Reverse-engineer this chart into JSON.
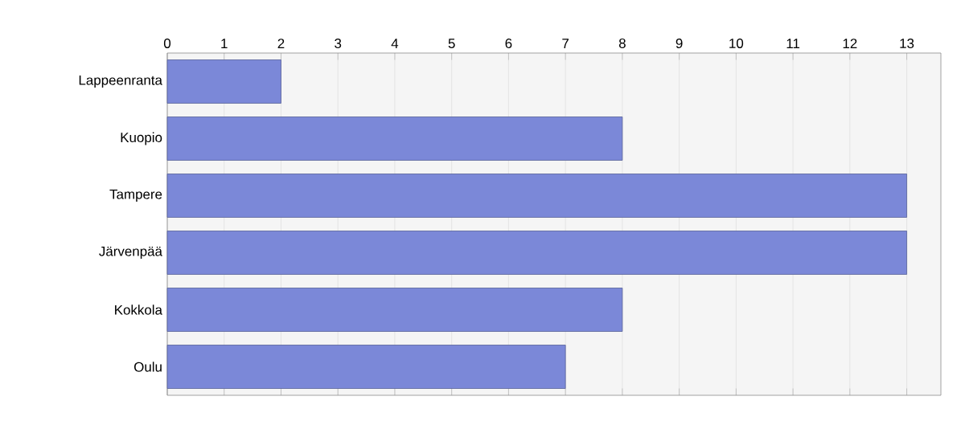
{
  "chart_data": {
    "type": "bar",
    "orientation": "horizontal",
    "categories": [
      "Lappeenranta",
      "Kuopio",
      "Tampere",
      "Järvenpää",
      "Kokkola",
      "Oulu"
    ],
    "values": [
      2,
      8,
      13,
      13,
      8,
      7
    ],
    "color": "#7b88d8",
    "xlim": [
      0,
      13.6
    ],
    "xticks": [
      0,
      1,
      2,
      3,
      4,
      5,
      6,
      7,
      8,
      9,
      10,
      11,
      12,
      13
    ],
    "grid": "x"
  }
}
